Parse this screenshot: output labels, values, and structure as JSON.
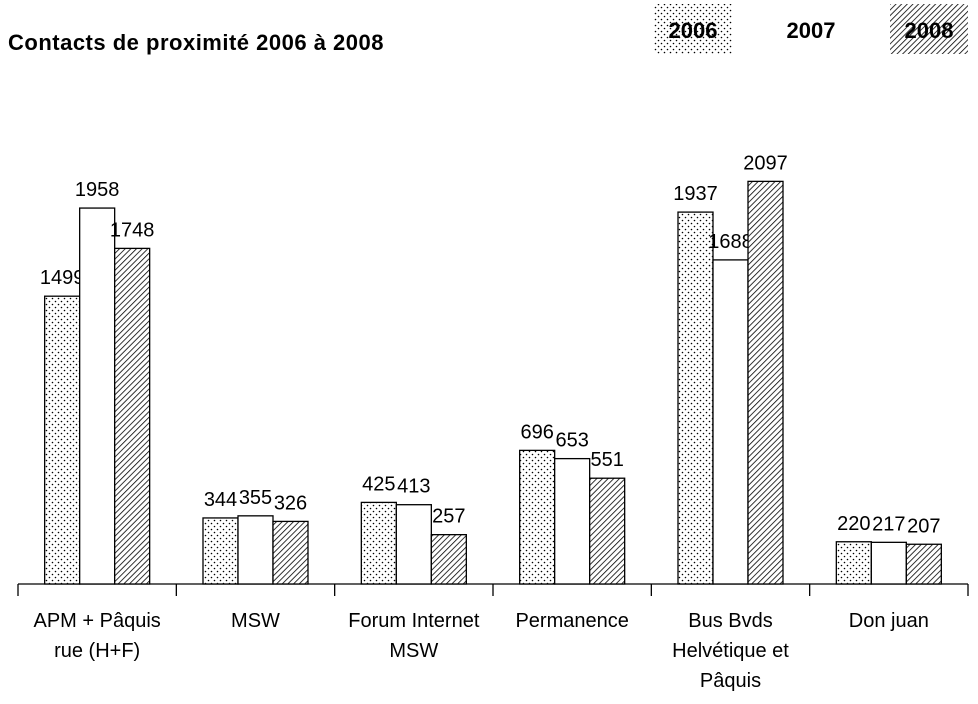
{
  "chart_data": {
    "type": "bar",
    "title": "Contacts de proximité 2006 à 2008",
    "categories": [
      "APM + Pâquis rue (H+F)",
      "MSW",
      "Forum Internet MSW",
      "Permanence",
      "Bus Bvds Helvétique et Pâquis",
      "Don juan"
    ],
    "series": [
      {
        "name": "2006",
        "color": "#000000",
        "pattern": "dots",
        "values": [
          1499,
          344,
          425,
          696,
          1937,
          220
        ]
      },
      {
        "name": "2007",
        "color": "#000000",
        "pattern": "none",
        "values": [
          1958,
          355,
          413,
          653,
          1688,
          217
        ]
      },
      {
        "name": "2008",
        "color": "#000000",
        "pattern": "hatch",
        "values": [
          1748,
          326,
          257,
          551,
          2097,
          207
        ]
      }
    ],
    "ylim": [
      0,
      2500
    ],
    "legend": "top-right"
  }
}
